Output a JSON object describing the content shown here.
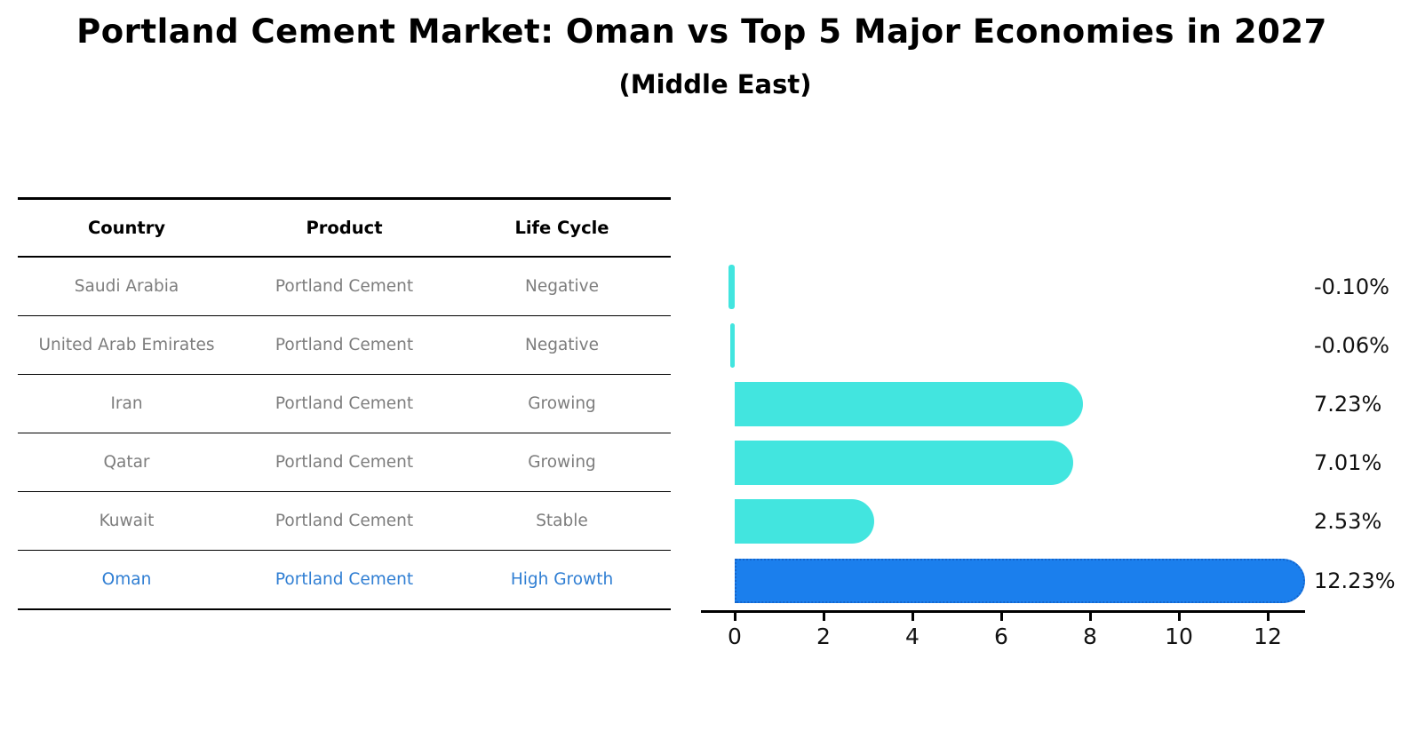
{
  "title": "Portland Cement Market: Oman vs Top 5 Major Economies in 2027",
  "subtitle": "(Middle East)",
  "table": {
    "headers": [
      "Country",
      "Product",
      "Life Cycle"
    ],
    "rows": [
      {
        "country": "Saudi Arabia",
        "product": "Portland Cement",
        "life_cycle": "Negative",
        "highlight": false
      },
      {
        "country": "United Arab Emirates",
        "product": "Portland Cement",
        "life_cycle": "Negative",
        "highlight": false
      },
      {
        "country": "Iran",
        "product": "Portland Cement",
        "life_cycle": "Growing",
        "highlight": false
      },
      {
        "country": "Qatar",
        "product": "Portland Cement",
        "life_cycle": "Growing",
        "highlight": false
      },
      {
        "country": "Kuwait",
        "product": "Portland Cement",
        "life_cycle": "Stable",
        "highlight": false
      },
      {
        "country": "Oman",
        "product": "Portland Cement",
        "life_cycle": "High Growth",
        "highlight": true
      }
    ]
  },
  "chart_data": {
    "type": "bar",
    "orientation": "horizontal",
    "title": "Portland Cement Market: Oman vs Top 5 Major Economies in 2027",
    "subtitle": "(Middle East)",
    "categories": [
      "Saudi Arabia",
      "United Arab Emirates",
      "Iran",
      "Qatar",
      "Kuwait",
      "Oman"
    ],
    "values": [
      -0.1,
      -0.06,
      7.23,
      7.01,
      2.53,
      12.23
    ],
    "value_labels": [
      "-0.10%",
      "-0.06%",
      "7.23%",
      "7.01%",
      "2.53%",
      "12.23%"
    ],
    "x_ticks": [
      0,
      2,
      4,
      6,
      8,
      10,
      12
    ],
    "xlim": [
      -0.76,
      12.85
    ],
    "grid": false,
    "legend": false,
    "highlight_index": 5
  },
  "colors": {
    "bar": "#42E5DF",
    "highlight_bar": "#1B7FED",
    "highlight_border": "#1465CC",
    "row_text": "#7D7D7D",
    "highlight_text": "#2F7ED3",
    "axis": "#000000",
    "label": "#111111"
  }
}
